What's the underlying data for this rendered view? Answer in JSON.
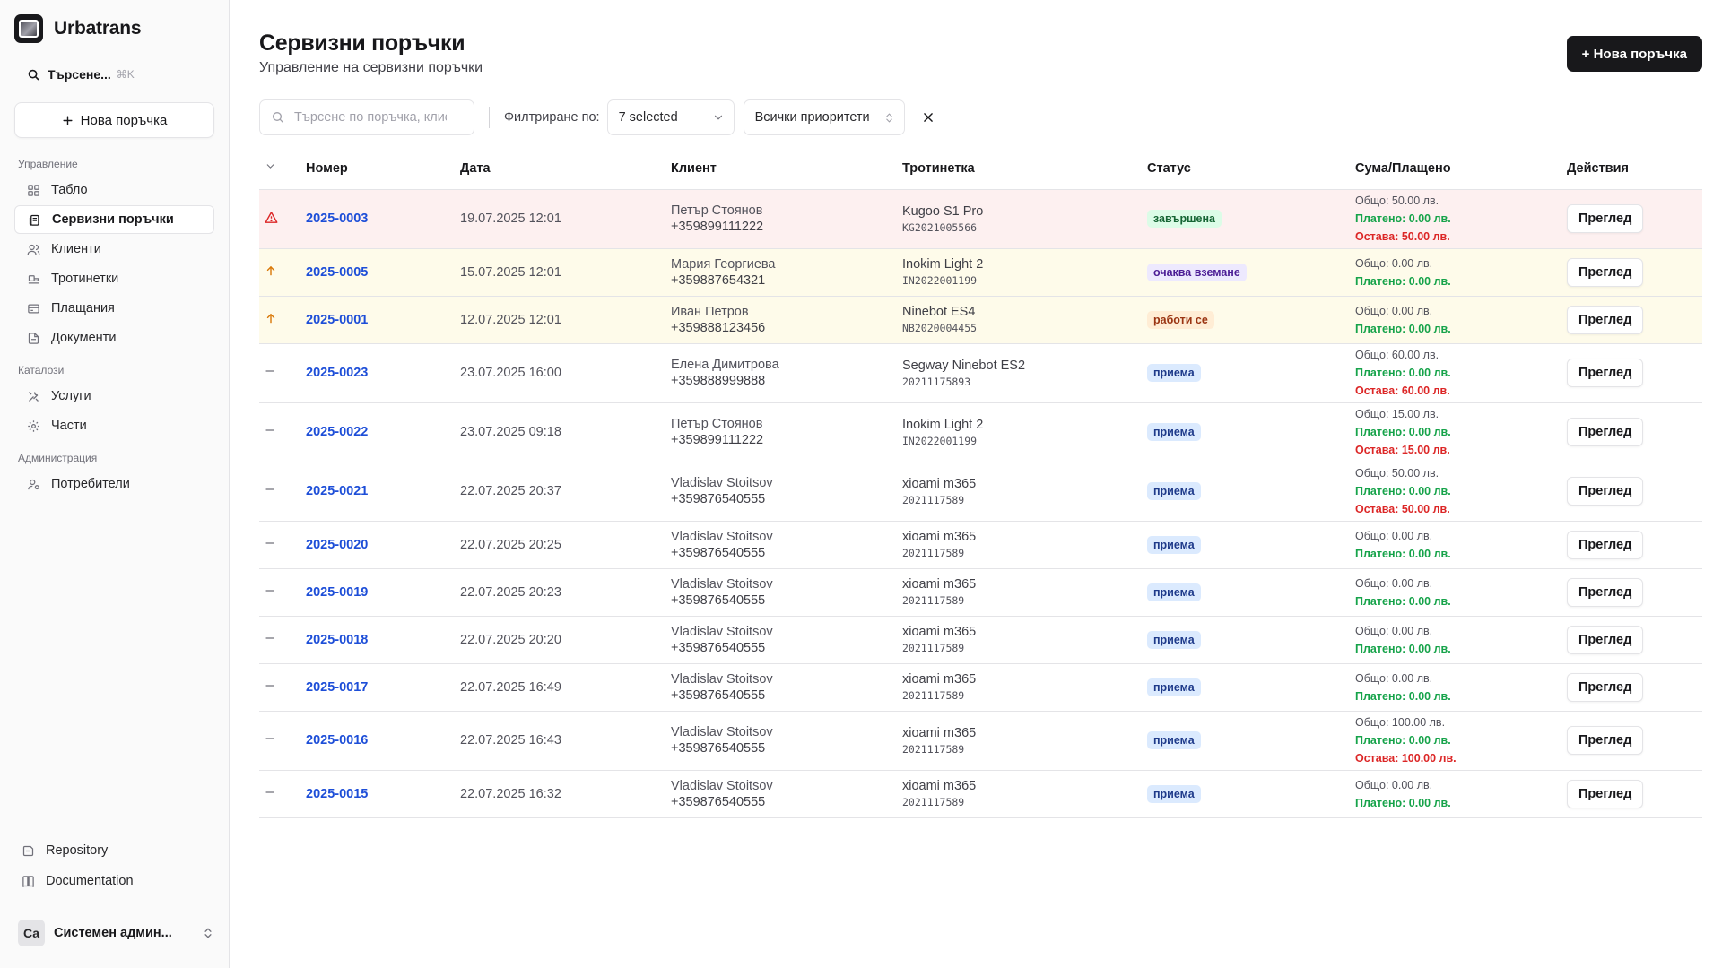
{
  "app": {
    "name": "Urbatrans"
  },
  "sidebar": {
    "search_label": "Търсене...",
    "search_shortcut": "⌘K",
    "new_order_label": "Нова поръчка",
    "groups": [
      {
        "label": "Управление",
        "items": [
          {
            "label": "Табло",
            "icon": "dashboard-icon"
          },
          {
            "label": "Сервизни поръчки",
            "icon": "orders-icon",
            "active": true
          },
          {
            "label": "Клиенти",
            "icon": "users-icon"
          },
          {
            "label": "Тротинетки",
            "icon": "scooter-icon"
          },
          {
            "label": "Плащания",
            "icon": "payment-icon"
          },
          {
            "label": "Документи",
            "icon": "document-icon"
          }
        ]
      },
      {
        "label": "Каталози",
        "items": [
          {
            "label": "Услуги",
            "icon": "tools-icon"
          },
          {
            "label": "Части",
            "icon": "gear-icon"
          }
        ]
      },
      {
        "label": "Администрация",
        "items": [
          {
            "label": "Потребители",
            "icon": "user-cog-icon"
          }
        ]
      }
    ],
    "footer_links": [
      {
        "label": "Repository",
        "icon": "repository-icon"
      },
      {
        "label": "Documentation",
        "icon": "book-icon"
      }
    ],
    "user": {
      "initials": "Са",
      "name": "Системен админ..."
    }
  },
  "header": {
    "title": "Сервизни поръчки",
    "subtitle": "Управление на сервизни поръчки",
    "new_order_button": "+ Нова поръчка"
  },
  "filters": {
    "search_placeholder": "Търсене по поръчка, клиент",
    "filter_label": "Филтриране по:",
    "status_value": "7 selected",
    "priority_value": "Всички приоритети"
  },
  "table": {
    "columns": [
      "Номер",
      "Дата",
      "Клиент",
      "Тротинетка",
      "Статус",
      "Сума/Плащено",
      "Действия"
    ],
    "rows": [
      {
        "priority": "urgent",
        "number": "2025-0003",
        "date": "19.07.2025 12:01",
        "client_name": "Петър Стоянов",
        "client_phone": "+359899111222",
        "scooter_model": "Kugoo S1 Pro",
        "scooter_serial": "KG2021005566",
        "status": "завършена",
        "status_color": "green",
        "total": "Общо: 50.00 лв.",
        "paid": "Платено: 0.00 лв.",
        "remaining": "Остава: 50.00 лв.",
        "action": "Преглед"
      },
      {
        "priority": "high",
        "number": "2025-0005",
        "date": "15.07.2025 12:01",
        "client_name": "Мария Георгиева",
        "client_phone": "+359887654321",
        "scooter_model": "Inokim Light 2",
        "scooter_serial": "IN2022001199",
        "status": "очаква вземане",
        "status_color": "purple",
        "total": "Общо: 0.00 лв.",
        "paid": "Платено: 0.00 лв.",
        "remaining": "",
        "action": "Преглед"
      },
      {
        "priority": "high",
        "number": "2025-0001",
        "date": "12.07.2025 12:01",
        "client_name": "Иван Петров",
        "client_phone": "+359888123456",
        "scooter_model": "Ninebot ES4",
        "scooter_serial": "NB2020004455",
        "status": "работи се",
        "status_color": "orange",
        "total": "Общо: 0.00 лв.",
        "paid": "Платено: 0.00 лв.",
        "remaining": "",
        "action": "Преглед"
      },
      {
        "priority": "normal",
        "number": "2025-0023",
        "date": "23.07.2025 16:00",
        "client_name": "Елена Димитрова",
        "client_phone": "+359888999888",
        "scooter_model": "Segway Ninebot ES2",
        "scooter_serial": "20211175893",
        "status": "приема",
        "status_color": "blue",
        "total": "Общо: 60.00 лв.",
        "paid": "Платено: 0.00 лв.",
        "remaining": "Остава: 60.00 лв.",
        "action": "Преглед"
      },
      {
        "priority": "normal",
        "number": "2025-0022",
        "date": "23.07.2025 09:18",
        "client_name": "Петър Стоянов",
        "client_phone": "+359899111222",
        "scooter_model": "Inokim Light 2",
        "scooter_serial": "IN2022001199",
        "status": "приема",
        "status_color": "blue",
        "total": "Общо: 15.00 лв.",
        "paid": "Платено: 0.00 лв.",
        "remaining": "Остава: 15.00 лв.",
        "action": "Преглед"
      },
      {
        "priority": "normal",
        "number": "2025-0021",
        "date": "22.07.2025 20:37",
        "client_name": "Vladislav Stoitsov",
        "client_phone": "+359876540555",
        "scooter_model": "xioami m365",
        "scooter_serial": "2021117589",
        "status": "приема",
        "status_color": "blue",
        "total": "Общо: 50.00 лв.",
        "paid": "Платено: 0.00 лв.",
        "remaining": "Остава: 50.00 лв.",
        "action": "Преглед"
      },
      {
        "priority": "normal",
        "number": "2025-0020",
        "date": "22.07.2025 20:25",
        "client_name": "Vladislav Stoitsov",
        "client_phone": "+359876540555",
        "scooter_model": "xioami m365",
        "scooter_serial": "2021117589",
        "status": "приема",
        "status_color": "blue",
        "total": "Общо: 0.00 лв.",
        "paid": "Платено: 0.00 лв.",
        "remaining": "",
        "action": "Преглед"
      },
      {
        "priority": "normal",
        "number": "2025-0019",
        "date": "22.07.2025 20:23",
        "client_name": "Vladislav Stoitsov",
        "client_phone": "+359876540555",
        "scooter_model": "xioami m365",
        "scooter_serial": "2021117589",
        "status": "приема",
        "status_color": "blue",
        "total": "Общо: 0.00 лв.",
        "paid": "Платено: 0.00 лв.",
        "remaining": "",
        "action": "Преглед"
      },
      {
        "priority": "normal",
        "number": "2025-0018",
        "date": "22.07.2025 20:20",
        "client_name": "Vladislav Stoitsov",
        "client_phone": "+359876540555",
        "scooter_model": "xioami m365",
        "scooter_serial": "2021117589",
        "status": "приема",
        "status_color": "blue",
        "total": "Общо: 0.00 лв.",
        "paid": "Платено: 0.00 лв.",
        "remaining": "",
        "action": "Преглед"
      },
      {
        "priority": "normal",
        "number": "2025-0017",
        "date": "22.07.2025 16:49",
        "client_name": "Vladislav Stoitsov",
        "client_phone": "+359876540555",
        "scooter_model": "xioami m365",
        "scooter_serial": "2021117589",
        "status": "приема",
        "status_color": "blue",
        "total": "Общо: 0.00 лв.",
        "paid": "Платено: 0.00 лв.",
        "remaining": "",
        "action": "Преглед"
      },
      {
        "priority": "normal",
        "number": "2025-0016",
        "date": "22.07.2025 16:43",
        "client_name": "Vladislav Stoitsov",
        "client_phone": "+359876540555",
        "scooter_model": "xioami m365",
        "scooter_serial": "2021117589",
        "status": "приема",
        "status_color": "blue",
        "total": "Общо: 100.00 лв.",
        "paid": "Платено: 0.00 лв.",
        "remaining": "Остава: 100.00 лв.",
        "action": "Преглед"
      },
      {
        "priority": "normal",
        "number": "2025-0015",
        "date": "22.07.2025 16:32",
        "client_name": "Vladislav Stoitsov",
        "client_phone": "+359876540555",
        "scooter_model": "xioami m365",
        "scooter_serial": "2021117589",
        "status": "приема",
        "status_color": "blue",
        "total": "Общо: 0.00 лв.",
        "paid": "Платено: 0.00 лв.",
        "remaining": "",
        "action": "Преглед"
      }
    ]
  },
  "colors": {
    "link": "#1d4ed8",
    "urgent_row": "#fdf0f0",
    "high_row": "#fefbea",
    "urgent_icon": "#dc2626",
    "high_icon": "#d97706",
    "paid": "#16a34a",
    "remaining": "#dc2626"
  }
}
